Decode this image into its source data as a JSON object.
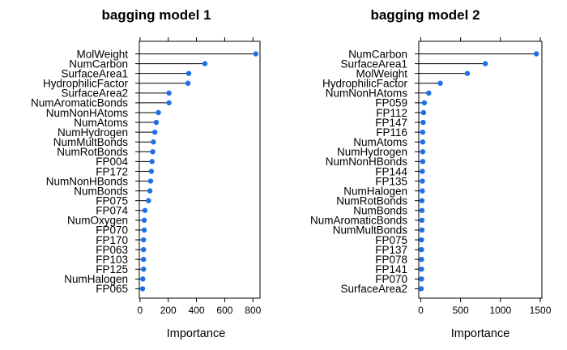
{
  "colors": {
    "point": "#1f6fe8",
    "stem": "#000000",
    "frame": "#000000"
  },
  "chart_data": [
    {
      "type": "dotplot",
      "title": "bagging model 1",
      "xlabel": "Importance",
      "xlim": [
        -5,
        850
      ],
      "xticks": [
        0,
        200,
        400,
        600,
        800
      ],
      "grid": false,
      "categories": [
        "MolWeight",
        "NumCarbon",
        "SurfaceArea1",
        "HydrophilicFactor",
        "SurfaceArea2",
        "NumAromaticBonds",
        "NumNonHAtoms",
        "NumAtoms",
        "NumHydrogen",
        "NumMultBonds",
        "NumRotBonds",
        "FP004",
        "FP172",
        "NumNonHBonds",
        "NumBonds",
        "FP075",
        "FP074",
        "NumOxygen",
        "FP070",
        "FP170",
        "FP063",
        "FP103",
        "FP125",
        "NumHalogen",
        "FP065"
      ],
      "values": [
        820,
        460,
        345,
        340,
        205,
        205,
        130,
        115,
        105,
        95,
        90,
        85,
        80,
        75,
        70,
        60,
        35,
        30,
        30,
        25,
        25,
        25,
        25,
        20,
        18
      ]
    },
    {
      "type": "dotplot",
      "title": "bagging model 2",
      "xlabel": "Importance",
      "xlim": [
        -25,
        1520
      ],
      "xticks": [
        0,
        500,
        1000,
        1500
      ],
      "grid": false,
      "categories": [
        "NumCarbon",
        "SurfaceArea1",
        "MolWeight",
        "HydrophilicFactor",
        "NumNonHAtoms",
        "FP059",
        "FP112",
        "FP147",
        "FP116",
        "NumAtoms",
        "NumHydrogen",
        "NumNonHBonds",
        "FP144",
        "FP135",
        "NumHalogen",
        "NumRotBonds",
        "NumBonds",
        "NumAromaticBonds",
        "NumMultBonds",
        "FP075",
        "FP137",
        "FP078",
        "FP141",
        "FP070",
        "SurfaceArea2"
      ],
      "values": [
        1450,
        810,
        585,
        245,
        100,
        45,
        35,
        30,
        25,
        25,
        25,
        25,
        20,
        20,
        20,
        15,
        15,
        15,
        15,
        10,
        10,
        10,
        10,
        10,
        5
      ]
    }
  ]
}
